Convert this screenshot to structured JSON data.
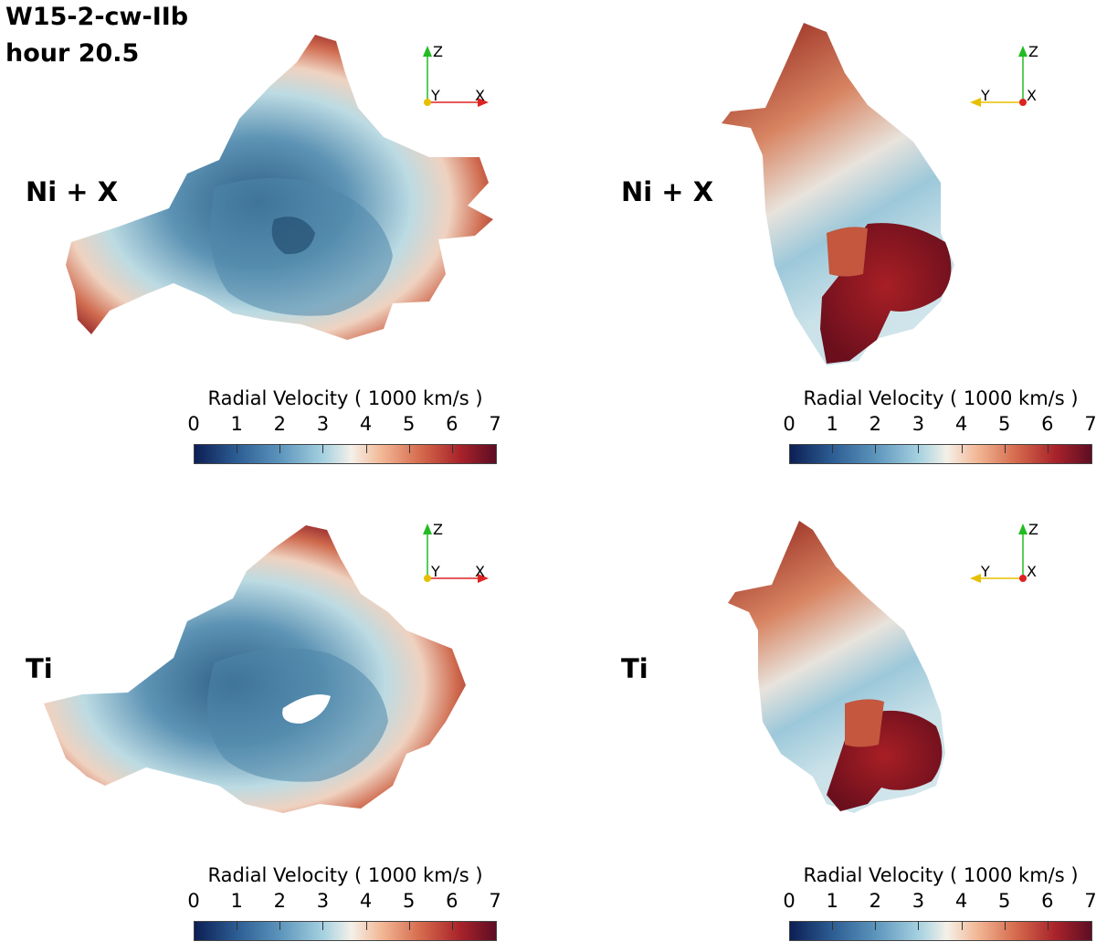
{
  "figure": {
    "title_line1": "W15-2-cw-IIb",
    "title_line2": "hour 20.5"
  },
  "panels": [
    {
      "label": "Ni + X",
      "colorbar_title": "Radial Velocity ( 1000 km/s )",
      "axes": {
        "vertical": "Z",
        "left": "Y",
        "right": "X"
      }
    },
    {
      "label": "Ni + X",
      "colorbar_title": "Radial Velocity ( 1000 km/s )",
      "axes": {
        "vertical": "Z",
        "left": "Y",
        "right": "X"
      }
    },
    {
      "label": "Ti",
      "colorbar_title": "Radial Velocity ( 1000 km/s )",
      "axes": {
        "vertical": "Z",
        "left": "Y",
        "right": "X"
      }
    },
    {
      "label": "Ti",
      "colorbar_title": "Radial Velocity ( 1000 km/s )",
      "axes": {
        "vertical": "Z",
        "left": "Y",
        "right": "X"
      }
    }
  ],
  "colorbar": {
    "ticks": [
      "0",
      "1",
      "2",
      "3",
      "4",
      "5",
      "6",
      "7"
    ],
    "colors": {
      "low": "#0c1f55",
      "mid": "#f4f0e8",
      "high": "#5e0d24"
    }
  },
  "axis_colors": {
    "z": "#22bb22",
    "x": "#dd2222",
    "y": "#e6c000"
  }
}
